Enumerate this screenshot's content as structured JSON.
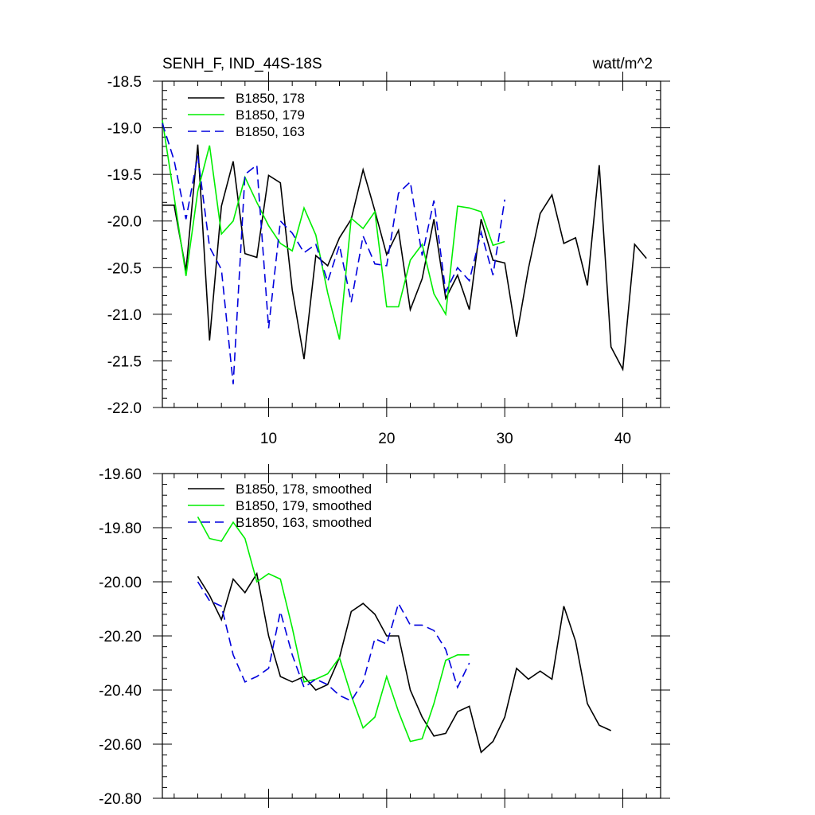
{
  "chart_data": [
    {
      "type": "line",
      "title": "SENH_F, IND_44S-18S",
      "units": "watt/m^2",
      "xlim": [
        1.0,
        43.2
      ],
      "ylim": [
        -22.0,
        -18.5
      ],
      "x_ticks": [
        10,
        20,
        30,
        40
      ],
      "y_ticks": [
        -18.5,
        -19.0,
        -19.5,
        -20.0,
        -20.5,
        -21.0,
        -21.5,
        -22.0
      ],
      "y_tick_labels": [
        "-18.5",
        "-19.0",
        "-19.5",
        "-20.0",
        "-20.5",
        "-21.0",
        "-21.5",
        "-22.0"
      ],
      "legend_position": "top-left",
      "series": [
        {
          "name": "B1850, 178",
          "color": "#000000",
          "dash": "solid",
          "x": [
            1,
            2,
            3,
            4,
            5,
            6,
            7,
            8,
            9,
            10,
            11,
            12,
            13,
            14,
            15,
            16,
            17,
            18,
            19,
            20,
            21,
            22,
            23,
            24,
            25,
            26,
            27,
            28,
            29,
            30,
            31,
            32,
            33,
            34,
            35,
            36,
            37,
            38,
            39,
            40,
            41,
            42
          ],
          "y": [
            -19.83,
            -19.83,
            -20.53,
            -19.18,
            -21.28,
            -19.84,
            -19.36,
            -20.35,
            -20.39,
            -19.51,
            -19.59,
            -20.74,
            -21.48,
            -20.37,
            -20.48,
            -20.18,
            -19.98,
            -19.45,
            -19.89,
            -20.36,
            -20.1,
            -20.95,
            -20.62,
            -19.98,
            -20.83,
            -20.58,
            -20.95,
            -19.98,
            -20.42,
            -20.45,
            -21.24,
            -20.51,
            -19.92,
            -19.72,
            -20.24,
            -20.18,
            -20.69,
            -19.4,
            -21.35,
            -21.59,
            -20.25,
            -20.4
          ]
        },
        {
          "name": "B1850, 179",
          "color": "#00ee00",
          "dash": "solid",
          "x": [
            1,
            2,
            3,
            4,
            5,
            6,
            7,
            8,
            9,
            10,
            11,
            12,
            13,
            14,
            15,
            16,
            17,
            18,
            19,
            20,
            21,
            22,
            23,
            24,
            25,
            26,
            27,
            28,
            29,
            30
          ],
          "y": [
            -18.92,
            -19.74,
            -20.59,
            -19.68,
            -19.19,
            -20.14,
            -20.0,
            -19.53,
            -19.8,
            -20.05,
            -20.24,
            -20.32,
            -19.86,
            -20.15,
            -20.77,
            -21.27,
            -19.97,
            -20.08,
            -19.9,
            -20.92,
            -20.92,
            -20.42,
            -20.25,
            -20.78,
            -21.0,
            -19.84,
            -19.86,
            -19.9,
            -20.26,
            -20.22
          ]
        },
        {
          "name": "B1850, 163",
          "color": "#0000dd",
          "dash": "dashed",
          "x": [
            1,
            2,
            3,
            4,
            5,
            6,
            7,
            8,
            9,
            10,
            11,
            12,
            13,
            14,
            15,
            16,
            17,
            18,
            19,
            20,
            21,
            22,
            23,
            24,
            25,
            26,
            27,
            28,
            29,
            30
          ],
          "y": [
            -18.95,
            -19.35,
            -19.98,
            -19.3,
            -20.28,
            -20.52,
            -21.75,
            -19.5,
            -19.4,
            -21.15,
            -20.0,
            -20.13,
            -20.34,
            -20.25,
            -20.65,
            -20.26,
            -20.87,
            -20.16,
            -20.46,
            -20.48,
            -19.7,
            -19.58,
            -20.37,
            -19.78,
            -20.76,
            -20.5,
            -20.64,
            -20.12,
            -20.58,
            -19.77
          ]
        }
      ]
    },
    {
      "type": "line",
      "xlim": [
        1.0,
        43.2
      ],
      "ylim": [
        -20.8,
        -19.6
      ],
      "x_ticks": [
        10,
        20,
        30,
        40
      ],
      "y_ticks": [
        -19.6,
        -19.8,
        -20.0,
        -20.2,
        -20.4,
        -20.6,
        -20.8
      ],
      "y_tick_labels": [
        "-19.60",
        "-19.80",
        "-20.00",
        "-20.20",
        "-20.40",
        "-20.60",
        "-20.80"
      ],
      "legend_position": "top-left",
      "series": [
        {
          "name": "B1850, 178, smoothed",
          "color": "#000000",
          "dash": "solid",
          "x": [
            4,
            5,
            6,
            7,
            8,
            9,
            10,
            11,
            12,
            13,
            14,
            15,
            16,
            17,
            18,
            19,
            20,
            21,
            22,
            23,
            24,
            25,
            26,
            27,
            28,
            29,
            30,
            31,
            32,
            33,
            34,
            35,
            36,
            37,
            38,
            39
          ],
          "y": [
            -19.98,
            -20.05,
            -20.14,
            -19.99,
            -20.04,
            -19.97,
            -20.2,
            -20.35,
            -20.37,
            -20.35,
            -20.4,
            -20.38,
            -20.28,
            -20.11,
            -20.08,
            -20.12,
            -20.2,
            -20.2,
            -20.4,
            -20.5,
            -20.57,
            -20.56,
            -20.48,
            -20.46,
            -20.63,
            -20.59,
            -20.5,
            -20.32,
            -20.36,
            -20.33,
            -20.36,
            -20.09,
            -20.22,
            -20.45,
            -20.53,
            -20.55
          ]
        },
        {
          "name": "B1850, 179, smoothed",
          "color": "#00ee00",
          "dash": "solid",
          "x": [
            4,
            5,
            6,
            7,
            8,
            9,
            10,
            11,
            12,
            13,
            14,
            15,
            16,
            17,
            18,
            19,
            20,
            21,
            22,
            23,
            24,
            25,
            26,
            27
          ],
          "y": [
            -19.76,
            -19.84,
            -19.85,
            -19.78,
            -19.84,
            -20.0,
            -19.97,
            -19.99,
            -20.17,
            -20.37,
            -20.36,
            -20.34,
            -20.28,
            -20.42,
            -20.54,
            -20.5,
            -20.35,
            -20.48,
            -20.59,
            -20.58,
            -20.45,
            -20.29,
            -20.27,
            -20.27
          ]
        },
        {
          "name": "B1850, 163, smoothed",
          "color": "#0000dd",
          "dash": "dashed",
          "x": [
            4,
            5,
            6,
            7,
            8,
            9,
            10,
            11,
            12,
            13,
            14,
            15,
            16,
            17,
            18,
            19,
            20,
            21,
            22,
            23,
            24,
            25,
            26,
            27
          ],
          "y": [
            -20.0,
            -20.07,
            -20.09,
            -20.27,
            -20.37,
            -20.35,
            -20.32,
            -20.11,
            -20.27,
            -20.39,
            -20.36,
            -20.38,
            -20.42,
            -20.44,
            -20.37,
            -20.21,
            -20.23,
            -20.08,
            -20.16,
            -20.16,
            -20.18,
            -20.25,
            -20.39,
            -20.3
          ]
        }
      ]
    }
  ]
}
